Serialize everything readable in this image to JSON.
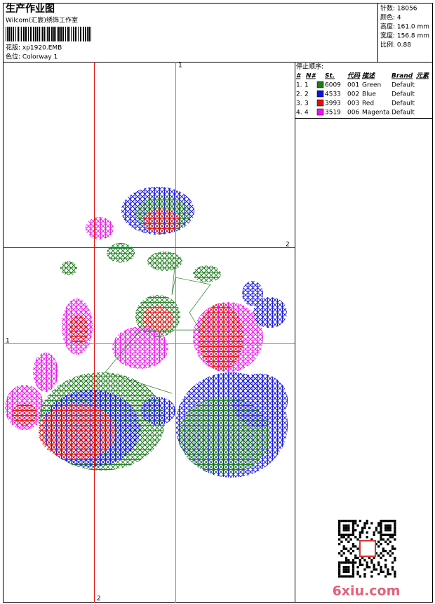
{
  "header": {
    "title": "生产作业图",
    "subtitle": "Wilcom(汇宸)绣饰工作室",
    "design": "花版: xp1920.EMB",
    "colorway": "色位: Colorway 1"
  },
  "info": [
    "针数: 18056",
    "颜色: 4",
    "高度: 161.0 mm",
    "宽度: 156.8 mm",
    "比例: 0.88"
  ],
  "stop_sequence": {
    "title": "停止顺序:",
    "columns": [
      "#",
      "N#",
      "St.",
      "代码",
      "描述",
      "Brand",
      "元素"
    ],
    "rows": [
      {
        "index": "1.",
        "needle": "1",
        "color": "#1a7a1a",
        "stitches": 6009,
        "code": "001",
        "description": "Green",
        "brand": "Default"
      },
      {
        "index": "2.",
        "needle": "2",
        "color": "#1010e0",
        "stitches": 4533,
        "code": "002",
        "description": "Blue",
        "brand": "Default"
      },
      {
        "index": "3.",
        "needle": "3",
        "color": "#e01010",
        "stitches": 3993,
        "code": "003",
        "description": "Red",
        "brand": "Default"
      },
      {
        "index": "4.",
        "needle": "4",
        "color": "#ee10ee",
        "stitches": 3519,
        "code": "006",
        "description": "Magenta",
        "brand": "Default"
      }
    ]
  },
  "guides": {
    "top": "1",
    "right": "2",
    "left": "1",
    "bottom": "2"
  },
  "watermark": "6xiu.com"
}
